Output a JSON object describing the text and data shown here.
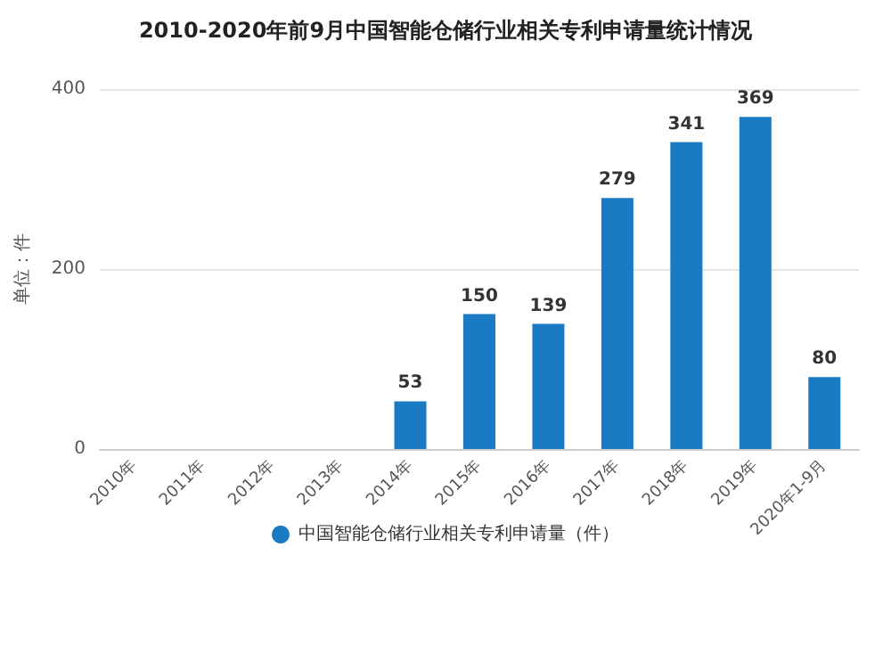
{
  "chart_data": {
    "type": "bar",
    "title": "2010-2020年前9月中国智能仓储行业相关专利申请量统计情况",
    "ylabel": "单位：件",
    "categories": [
      "2010年",
      "2011年",
      "2012年",
      "2013年",
      "2014年",
      "2015年",
      "2016年",
      "2017年",
      "2018年",
      "2019年",
      "2020年1-9月"
    ],
    "series": [
      {
        "name": "中国智能仓储行业相关专利申请量（件）",
        "color": "#1a7ac4",
        "values": [
          null,
          null,
          null,
          null,
          53,
          150,
          139,
          279,
          341,
          369,
          80
        ]
      }
    ],
    "ylim": [
      0,
      400
    ],
    "yticks": [
      0,
      200,
      400
    ],
    "grid": "y",
    "legend": "bottom",
    "data_labels": true
  }
}
